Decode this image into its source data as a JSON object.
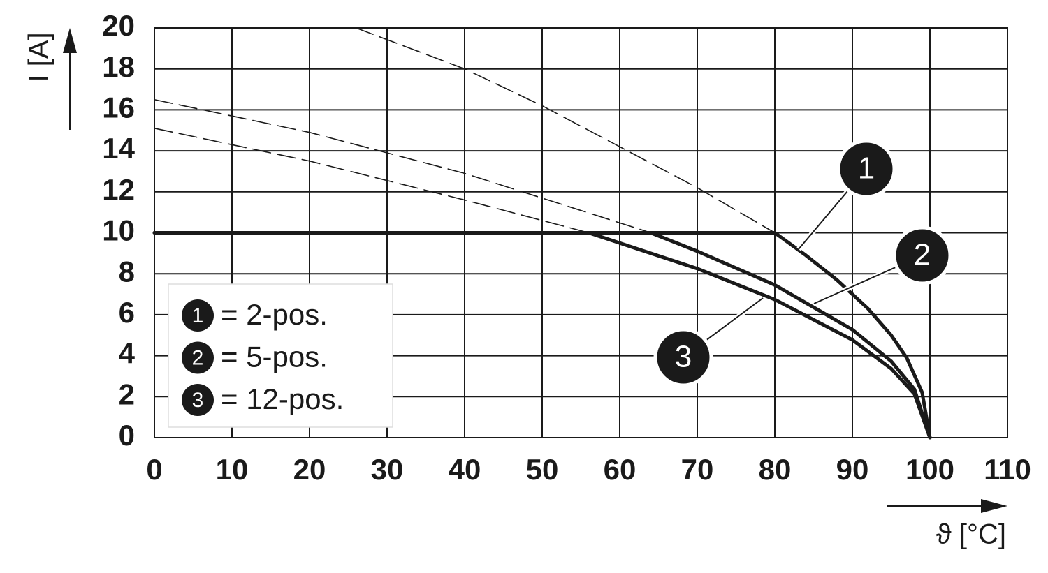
{
  "chart_data": {
    "type": "line",
    "ylabel": "I [A]",
    "xlabel": "ϑ [°C]",
    "xlim": [
      0,
      110
    ],
    "xticks": [
      0,
      10,
      20,
      30,
      40,
      50,
      60,
      70,
      80,
      90,
      100,
      110
    ],
    "ylim": [
      0,
      20
    ],
    "yticks": [
      0,
      2,
      4,
      6,
      8,
      10,
      12,
      14,
      16,
      18,
      20
    ],
    "grid": true,
    "color": "#1a1a1a",
    "legend": [
      {
        "marker": "1",
        "label": "= 2-pos."
      },
      {
        "marker": "2",
        "label": "= 5-pos."
      },
      {
        "marker": "3",
        "label": "= 12-pos."
      }
    ],
    "series": [
      {
        "style": "solid",
        "x": [
          0,
          80,
          84,
          88,
          92,
          95,
          97,
          99,
          100
        ],
        "values": [
          10,
          10,
          8.9,
          7.7,
          6.3,
          5.0,
          3.9,
          2.2,
          0
        ]
      },
      {
        "style": "solid",
        "x": [
          0,
          64,
          70,
          80,
          90,
          95,
          98,
          100
        ],
        "values": [
          10,
          10,
          9.1,
          7.45,
          5.27,
          3.73,
          2.36,
          0
        ]
      },
      {
        "style": "solid",
        "x": [
          0,
          56,
          60,
          70,
          80,
          90,
          95,
          98,
          100
        ],
        "values": [
          10,
          10,
          9.5,
          8.25,
          6.74,
          4.77,
          3.37,
          2.13,
          0
        ]
      },
      {
        "style": "dashed",
        "x": [
          26,
          40,
          50,
          60,
          70,
          80
        ],
        "values": [
          20,
          18,
          16.2,
          14.2,
          12.2,
          10
        ]
      },
      {
        "style": "dashed",
        "x": [
          0,
          20,
          40,
          64
        ],
        "values": [
          16.5,
          14.9,
          12.9,
          10
        ]
      },
      {
        "style": "dashed",
        "x": [
          0,
          20,
          40,
          56
        ],
        "values": [
          15.1,
          13.5,
          11.6,
          10
        ]
      }
    ]
  }
}
